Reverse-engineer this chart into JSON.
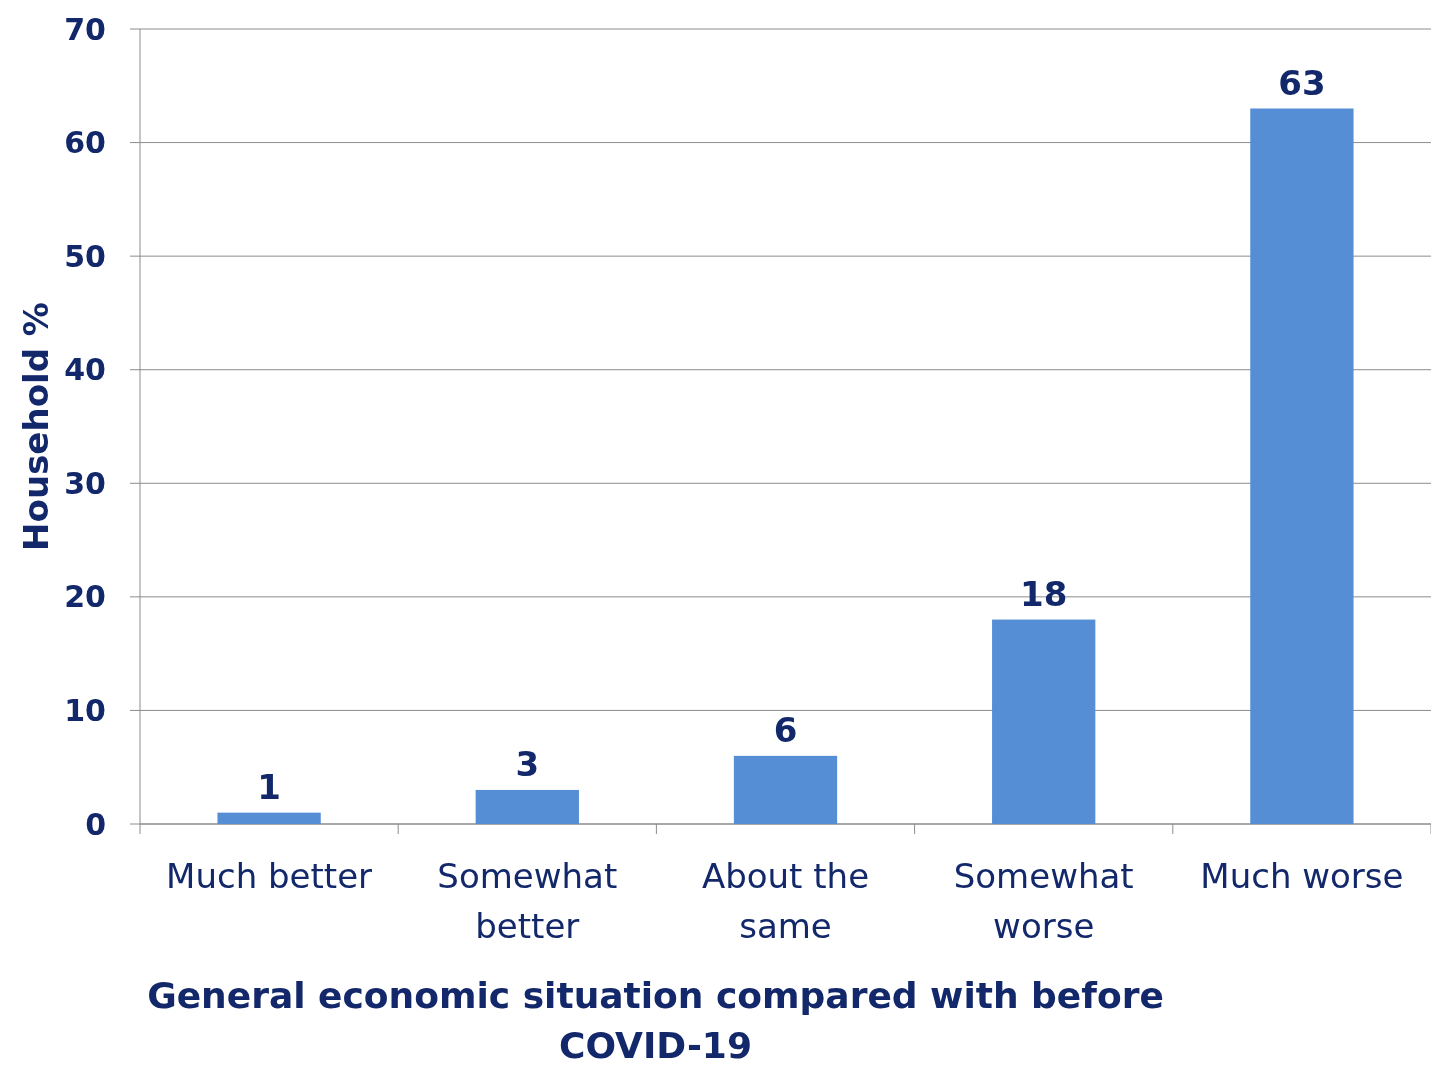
{
  "chart_data": {
    "type": "bar",
    "categories": [
      "Much better",
      "Somewhat better",
      "About the same",
      "Somewhat worse",
      "Much worse"
    ],
    "values": [
      1,
      3,
      6,
      18,
      63
    ],
    "color": "#558ed5",
    "xlabel": "General economic situation compared with before COVID-19",
    "ylabel": "Household %",
    "ylim": [
      0,
      70
    ],
    "yticks": [
      0,
      10,
      20,
      30,
      40,
      50,
      60,
      70
    ],
    "grid": "y",
    "data_labels": true
  }
}
